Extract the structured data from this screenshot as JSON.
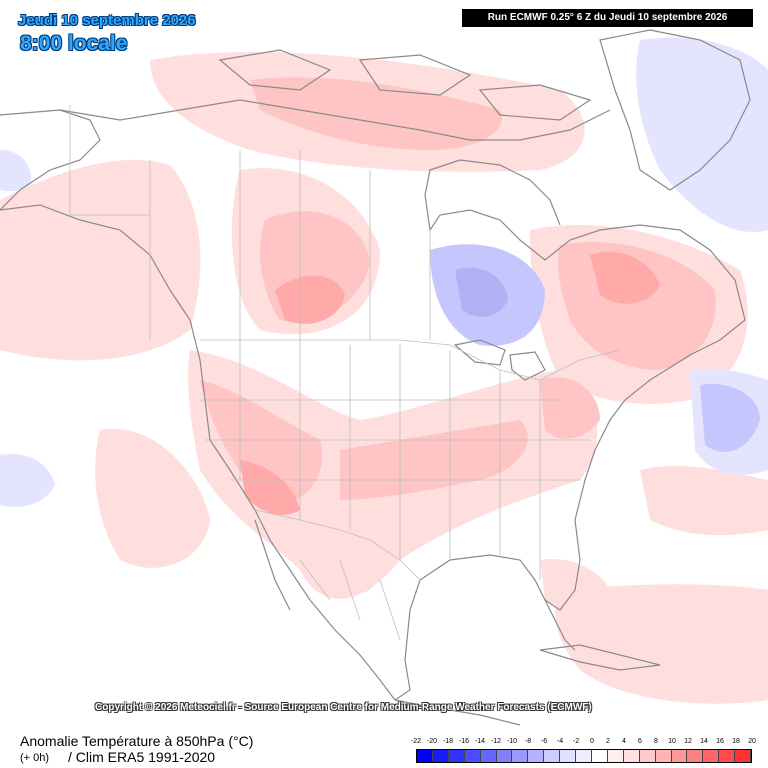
{
  "header": {
    "date": "Jeudi 10 septembre 2026",
    "time": "8:00 locale",
    "run": "Run ECMWF 0.25° 6 Z du Jeudi 10 septembre 2026"
  },
  "copyright": "Copyright © 2026 Meteociel.fr - Source European Centre for Medium-Range Weather Forecasts (ECMWF)",
  "footer": {
    "parameter": "Anomalie Température à 850hPa (°C)",
    "step": "(+ 0h)",
    "climatology": "/ Clim ERA5 1991-2020"
  },
  "legend": {
    "labels": [
      "-22",
      "-20",
      "-18",
      "-16",
      "-14",
      "-12",
      "-10",
      "-8",
      "-6",
      "-4",
      "-2",
      "0",
      "2",
      "4",
      "6",
      "8",
      "10",
      "12",
      "14",
      "16",
      "18",
      "20"
    ],
    "colors": [
      "#0000ff",
      "#1a1aff",
      "#3333ff",
      "#4d4dff",
      "#6666ff",
      "#8080ff",
      "#9999ff",
      "#b3b3ff",
      "#ccccff",
      "#e0e0ff",
      "#eeeeff",
      "#ffffff",
      "#ffeeee",
      "#ffe0e0",
      "#ffcccc",
      "#ffb3b3",
      "#ff9999",
      "#ff8080",
      "#ff6666",
      "#ff4d4d",
      "#ff3333"
    ]
  },
  "map": {
    "region": "Amérique du Nord",
    "colors": {
      "land_outline": "#8a8a8a",
      "border": "#bdbdbd",
      "warm_light": "#ffdede",
      "warm_mid": "#ffc4c4",
      "warm_strong": "#ffa9a9",
      "cold_light": "#e4e4ff",
      "cold_mid": "#c6c6ff",
      "cold_strong": "#b0b0f5"
    }
  }
}
